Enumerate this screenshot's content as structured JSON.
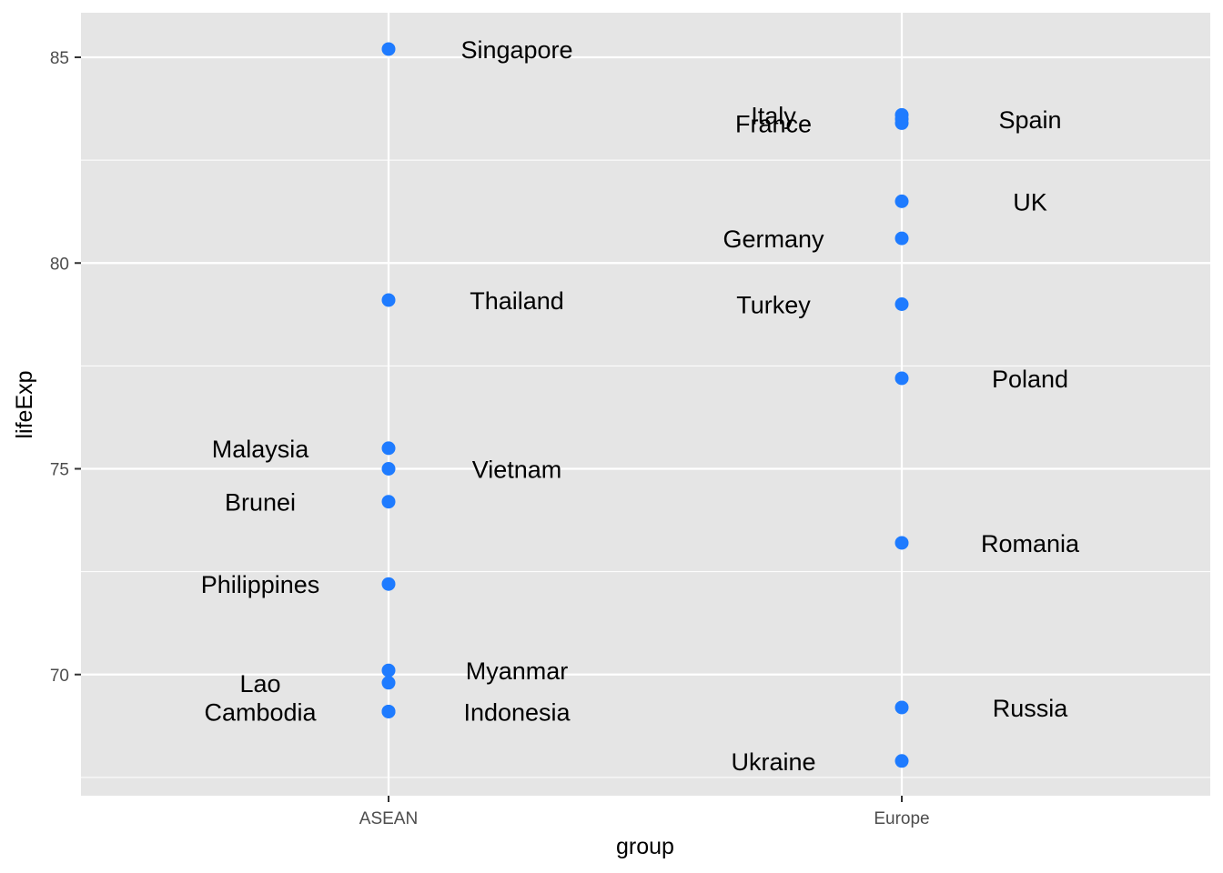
{
  "chart_data": {
    "type": "scatter",
    "xlabel": "group",
    "ylabel": "lifeExp",
    "categories": [
      "ASEAN",
      "Europe"
    ],
    "ylim": [
      67.3,
      86.2
    ],
    "yticks": [
      70,
      75,
      80,
      85
    ],
    "grid": true,
    "point_color": "#1E7BFF",
    "panel_background": "#E5E5E5",
    "points": [
      {
        "group": "ASEAN",
        "country": "Singapore",
        "lifeExp": 85.2,
        "label_side": "right"
      },
      {
        "group": "ASEAN",
        "country": "Thailand",
        "lifeExp": 79.1,
        "label_side": "right"
      },
      {
        "group": "ASEAN",
        "country": "Malaysia",
        "lifeExp": 75.5,
        "label_side": "left"
      },
      {
        "group": "ASEAN",
        "country": "Vietnam",
        "lifeExp": 75.0,
        "label_side": "right"
      },
      {
        "group": "ASEAN",
        "country": "Brunei",
        "lifeExp": 74.2,
        "label_side": "left"
      },
      {
        "group": "ASEAN",
        "country": "Philippines",
        "lifeExp": 72.2,
        "label_side": "left"
      },
      {
        "group": "ASEAN",
        "country": "Myanmar",
        "lifeExp": 70.1,
        "label_side": "right"
      },
      {
        "group": "ASEAN",
        "country": "Lao",
        "lifeExp": 69.8,
        "label_side": "left"
      },
      {
        "group": "ASEAN",
        "country": "Cambodia",
        "lifeExp": 69.1,
        "label_side": "left"
      },
      {
        "group": "ASEAN",
        "country": "Indonesia",
        "lifeExp": 69.1,
        "label_side": "right"
      },
      {
        "group": "Europe",
        "country": "Italy",
        "lifeExp": 83.6,
        "label_side": "left"
      },
      {
        "group": "Europe",
        "country": "Spain",
        "lifeExp": 83.5,
        "label_side": "right"
      },
      {
        "group": "Europe",
        "country": "France",
        "lifeExp": 83.4,
        "label_side": "left"
      },
      {
        "group": "Europe",
        "country": "UK",
        "lifeExp": 81.5,
        "label_side": "right"
      },
      {
        "group": "Europe",
        "country": "Germany",
        "lifeExp": 80.6,
        "label_side": "left"
      },
      {
        "group": "Europe",
        "country": "Turkey",
        "lifeExp": 79.0,
        "label_side": "left"
      },
      {
        "group": "Europe",
        "country": "Poland",
        "lifeExp": 77.2,
        "label_side": "right"
      },
      {
        "group": "Europe",
        "country": "Romania",
        "lifeExp": 73.2,
        "label_side": "right"
      },
      {
        "group": "Europe",
        "country": "Russia",
        "lifeExp": 69.2,
        "label_side": "right"
      },
      {
        "group": "Europe",
        "country": "Ukraine",
        "lifeExp": 67.9,
        "label_side": "left"
      }
    ]
  }
}
